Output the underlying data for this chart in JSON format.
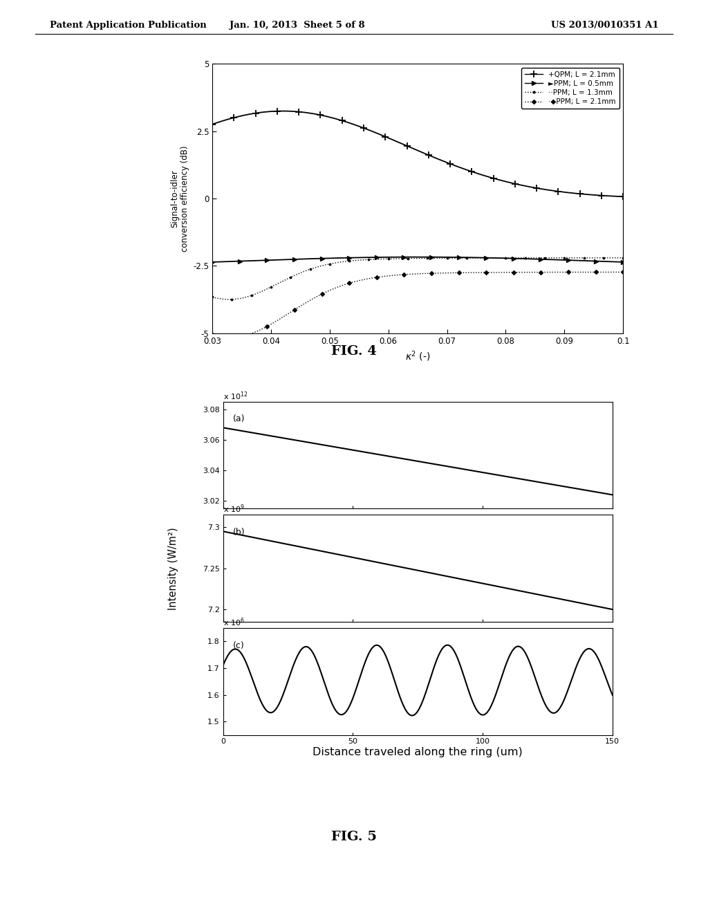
{
  "header_left": "Patent Application Publication",
  "header_mid": "Jan. 10, 2013  Sheet 5 of 8",
  "header_right": "US 2013/0010351 A1",
  "fig4_title": "FIG. 4",
  "fig5_title": "FIG. 5",
  "fig4": {
    "xlabel": "κ² (-)",
    "ylabel": "Signal-to-idler\nconversion efficiency (dB)",
    "xlim": [
      0.03,
      0.1
    ],
    "ylim": [
      -5,
      5
    ],
    "xticks": [
      0.03,
      0.04,
      0.05,
      0.06,
      0.07,
      0.08,
      0.09,
      0.1
    ],
    "xtick_labels": [
      "0.03",
      "0.04",
      "0.05",
      "0.06",
      "0.07",
      "0.08",
      "0.09",
      "0.1"
    ],
    "yticks": [
      -5,
      -2.5,
      0,
      2.5,
      5
    ],
    "ytick_labels": [
      "-5",
      "-2.5",
      "0",
      "2.5",
      "5"
    ]
  },
  "fig5": {
    "ylabel": "Intensity (W/m²)",
    "xlabel": "Distance traveled along the ring (um)",
    "xlim": [
      0,
      150
    ],
    "subplots": [
      {
        "label": "(a)",
        "scale_str": "x 10",
        "scale_exp": "12",
        "yticks": [
          3.02,
          3.04,
          3.06,
          3.08
        ],
        "ytick_labels": [
          "3.02",
          "3.04",
          "3.06",
          "3.08"
        ],
        "ylim": [
          3.015,
          3.085
        ],
        "xticks": [
          0,
          50,
          100,
          150
        ]
      },
      {
        "label": "(b)",
        "scale_str": "x 10",
        "scale_exp": "9",
        "yticks": [
          7.2,
          7.25,
          7.3
        ],
        "ytick_labels": [
          "7.2",
          "7.25",
          "7.3"
        ],
        "ylim": [
          7.185,
          7.315
        ],
        "xticks": [
          0,
          50,
          100,
          150
        ]
      },
      {
        "label": "(c)",
        "scale_str": "x 10",
        "scale_exp": "6",
        "yticks": [
          1.5,
          1.6,
          1.7,
          1.8
        ],
        "ytick_labels": [
          "1.5",
          "1.6",
          "1.7",
          "1.8"
        ],
        "ylim": [
          1.45,
          1.85
        ],
        "xticks": [
          0,
          50,
          100,
          150
        ]
      }
    ]
  },
  "bg_color": "#ffffff",
  "line_color": "#000000"
}
